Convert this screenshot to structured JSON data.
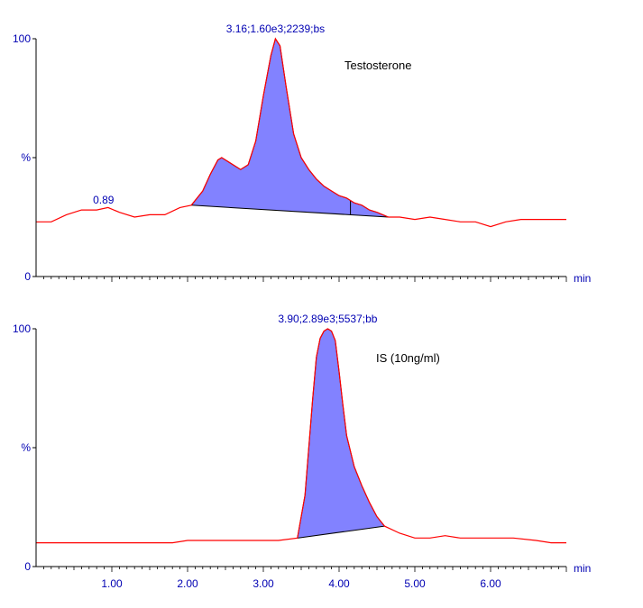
{
  "chart_data": [
    {
      "type": "line",
      "compound_label": "Testosterone",
      "xlabel": "min",
      "y_tick_labels": [
        "100",
        "%",
        "0"
      ],
      "xlim": [
        0,
        7
      ],
      "ylim": [
        0,
        100
      ],
      "peak_annotation": "3.16;1.60e3;2239;bs",
      "side_annotation": {
        "text": "0.89",
        "x": 0.89,
        "y": 28
      },
      "integration": {
        "start": [
          2.05,
          30
        ],
        "end": [
          4.65,
          25
        ],
        "marker_x": 4.15,
        "color": "#7b7bff"
      },
      "series": [
        {
          "color": "#ff0000",
          "x": [
            0.0,
            0.2,
            0.4,
            0.6,
            0.8,
            0.95,
            1.1,
            1.3,
            1.5,
            1.7,
            1.9,
            2.05,
            2.2,
            2.3,
            2.4,
            2.45,
            2.5,
            2.6,
            2.7,
            2.8,
            2.9,
            3.0,
            3.1,
            3.16,
            3.22,
            3.3,
            3.4,
            3.5,
            3.6,
            3.7,
            3.8,
            3.9,
            4.0,
            4.1,
            4.2,
            4.3,
            4.4,
            4.5,
            4.65,
            4.8,
            5.0,
            5.2,
            5.4,
            5.6,
            5.8,
            6.0,
            6.2,
            6.4,
            6.6,
            6.8,
            7.0
          ],
          "y": [
            23,
            23,
            26,
            28,
            28,
            29,
            27,
            25,
            26,
            26,
            29,
            30,
            36,
            43,
            49,
            50,
            49,
            47,
            45,
            47,
            57,
            76,
            93,
            100,
            97,
            80,
            60,
            50,
            45,
            41,
            38,
            36,
            34,
            33,
            31,
            30,
            28,
            27,
            25,
            25,
            24,
            25,
            24,
            23,
            23,
            21,
            23,
            24,
            24,
            24,
            24
          ]
        }
      ]
    },
    {
      "type": "line",
      "compound_label": "IS (10ng/ml)",
      "xlabel": "min",
      "y_tick_labels": [
        "100",
        "%",
        "0"
      ],
      "x_tick_labels": [
        "1.00",
        "2.00",
        "3.00",
        "4.00",
        "5.00",
        "6.00"
      ],
      "x_ticks": [
        1,
        2,
        3,
        4,
        5,
        6
      ],
      "xlim": [
        0,
        7
      ],
      "ylim": [
        0,
        100
      ],
      "peak_annotation": "3.90;2.89e3;5537;bb",
      "integration": {
        "start": [
          3.45,
          12
        ],
        "end": [
          4.6,
          17
        ],
        "color": "#7b7bff"
      },
      "series": [
        {
          "color": "#ff0000",
          "x": [
            0.0,
            0.3,
            0.6,
            0.9,
            1.2,
            1.5,
            1.8,
            2.0,
            2.3,
            2.6,
            2.9,
            3.2,
            3.45,
            3.55,
            3.6,
            3.65,
            3.7,
            3.75,
            3.8,
            3.85,
            3.9,
            3.95,
            4.0,
            4.05,
            4.1,
            4.2,
            4.3,
            4.4,
            4.5,
            4.6,
            4.8,
            5.0,
            5.2,
            5.4,
            5.6,
            5.8,
            6.0,
            6.3,
            6.6,
            6.8,
            7.0
          ],
          "y": [
            10,
            10,
            10,
            10,
            10,
            10,
            10,
            11,
            11,
            11,
            11,
            11,
            12,
            30,
            50,
            70,
            88,
            96,
            99,
            100,
            99,
            95,
            82,
            68,
            55,
            42,
            34,
            27,
            21,
            17,
            14,
            12,
            12,
            13,
            12,
            12,
            12,
            12,
            11,
            10,
            10
          ]
        }
      ]
    }
  ]
}
